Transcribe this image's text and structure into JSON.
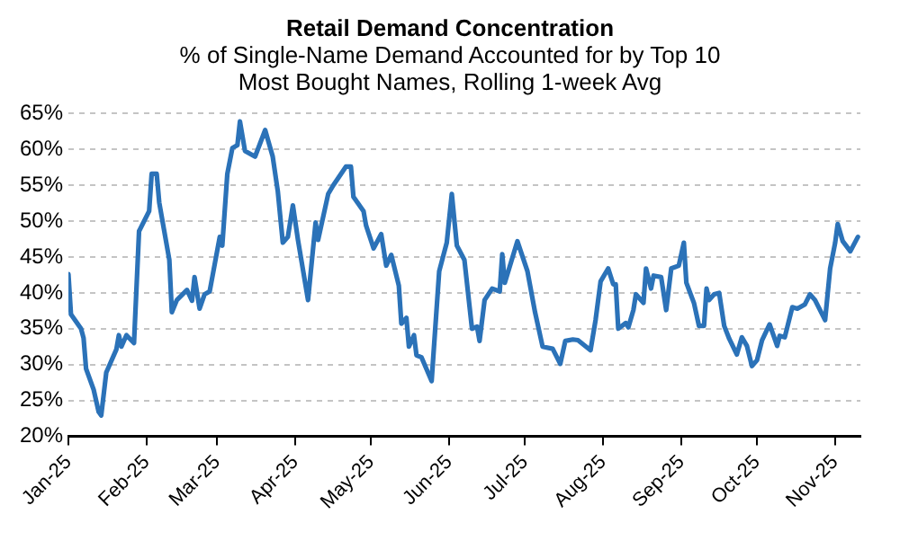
{
  "chart_data": {
    "type": "line",
    "title": "Retail Demand Concentration",
    "subtitle": "% of Single-Name Demand Accounted for by Top 10 Most Bought Names, Rolling 1-week Avg",
    "x": [
      "2025-01-01",
      "2025-01-02",
      "2025-01-06",
      "2025-01-07",
      "2025-01-08",
      "2025-01-11",
      "2025-01-13",
      "2025-01-14",
      "2025-01-16",
      "2025-01-20",
      "2025-01-21",
      "2025-01-22",
      "2025-01-24",
      "2025-01-27",
      "2025-01-29",
      "2025-02-02",
      "2025-02-03",
      "2025-02-05",
      "2025-02-06",
      "2025-02-10",
      "2025-02-11",
      "2025-02-13",
      "2025-02-17",
      "2025-02-19",
      "2025-02-20",
      "2025-02-22",
      "2025-02-24",
      "2025-02-26",
      "2025-03-02",
      "2025-03-03",
      "2025-03-05",
      "2025-03-07",
      "2025-03-09",
      "2025-03-10",
      "2025-03-12",
      "2025-03-16",
      "2025-03-20",
      "2025-03-23",
      "2025-03-25",
      "2025-03-27",
      "2025-03-29",
      "2025-03-31",
      "2025-04-02",
      "2025-04-06",
      "2025-04-09",
      "2025-04-10",
      "2025-04-14",
      "2025-04-16",
      "2025-04-21",
      "2025-04-23",
      "2025-04-24",
      "2025-04-28",
      "2025-04-29",
      "2025-05-02",
      "2025-05-05",
      "2025-05-07",
      "2025-05-09",
      "2025-05-12",
      "2025-05-13",
      "2025-05-15",
      "2025-05-16",
      "2025-05-18",
      "2025-05-19",
      "2025-05-21",
      "2025-05-25",
      "2025-05-28",
      "2025-05-31",
      "2025-06-02",
      "2025-06-04",
      "2025-06-07",
      "2025-06-10",
      "2025-06-12",
      "2025-06-13",
      "2025-06-15",
      "2025-06-18",
      "2025-06-21",
      "2025-06-22",
      "2025-06-23",
      "2025-06-28",
      "2025-07-02",
      "2025-07-05",
      "2025-07-08",
      "2025-07-12",
      "2025-07-15",
      "2025-07-17",
      "2025-07-20",
      "2025-07-22",
      "2025-07-27",
      "2025-07-29",
      "2025-07-31",
      "2025-08-03",
      "2025-08-05",
      "2025-08-06",
      "2025-08-07",
      "2025-08-10",
      "2025-08-11",
      "2025-08-13",
      "2025-08-14",
      "2025-08-17",
      "2025-08-18",
      "2025-08-20",
      "2025-08-21",
      "2025-08-24",
      "2025-08-26",
      "2025-08-28",
      "2025-08-31",
      "2025-09-02",
      "2025-09-03",
      "2025-09-06",
      "2025-09-08",
      "2025-09-10",
      "2025-09-11",
      "2025-09-12",
      "2025-09-14",
      "2025-09-16",
      "2025-09-18",
      "2025-09-20",
      "2025-09-23",
      "2025-09-25",
      "2025-09-27",
      "2025-09-29",
      "2025-10-01",
      "2025-10-03",
      "2025-10-06",
      "2025-10-09",
      "2025-10-10",
      "2025-10-12",
      "2025-10-15",
      "2025-10-17",
      "2025-10-20",
      "2025-10-22",
      "2025-10-24",
      "2025-10-28",
      "2025-10-30",
      "2025-11-01",
      "2025-11-02",
      "2025-11-04",
      "2025-11-07",
      "2025-11-10"
    ],
    "series": [
      {
        "color": "#2b72b8",
        "values": [
          42.6,
          37.0,
          35.0,
          33.7,
          29.4,
          26.5,
          23.4,
          22.9,
          28.9,
          32.1,
          34.1,
          32.5,
          34.1,
          33.0,
          48.6,
          51.4,
          56.6,
          56.6,
          52.6,
          44.6,
          37.3,
          39.0,
          40.4,
          38.9,
          42.2,
          37.8,
          39.8,
          40.2,
          47.8,
          46.6,
          56.6,
          60.2,
          60.6,
          63.9,
          59.8,
          59.0,
          62.7,
          59.0,
          54.2,
          47.0,
          47.8,
          52.2,
          47.4,
          39.0,
          49.8,
          47.4,
          53.8,
          55.0,
          57.6,
          57.6,
          53.4,
          51.4,
          49.4,
          46.2,
          48.2,
          43.8,
          45.3,
          41.0,
          35.7,
          36.5,
          32.5,
          34.1,
          31.3,
          31.0,
          27.7,
          43.0,
          47.0,
          53.8,
          46.6,
          44.6,
          35.0,
          35.3,
          33.3,
          39.0,
          40.6,
          40.2,
          45.4,
          41.4,
          47.2,
          43.0,
          37.3,
          32.5,
          32.2,
          30.1,
          33.3,
          33.5,
          33.4,
          32.0,
          36.2,
          41.6,
          43.4,
          41.2,
          41.2,
          35.0,
          35.8,
          35.2,
          37.6,
          39.8,
          38.6,
          43.4,
          40.6,
          42.4,
          42.2,
          37.6,
          43.4,
          43.8,
          47.0,
          41.4,
          38.6,
          35.4,
          35.4,
          40.6,
          39.0,
          39.8,
          40.0,
          35.4,
          33.6,
          31.4,
          33.8,
          32.6,
          29.8,
          30.6,
          33.4,
          35.6,
          32.6,
          34.0,
          33.8,
          38.0,
          37.8,
          38.4,
          39.8,
          39.0,
          36.2,
          43.4,
          47.0,
          49.6,
          47.2,
          45.8,
          47.8
        ]
      }
    ],
    "xlim": [
      "2025-01-01",
      "2025-11-11"
    ],
    "xticks": [
      {
        "value": "2025-01-01",
        "label": "Jan-25"
      },
      {
        "value": "2025-02-01",
        "label": "Feb-25"
      },
      {
        "value": "2025-03-01",
        "label": "Mar-25"
      },
      {
        "value": "2025-04-01",
        "label": "Apr-25"
      },
      {
        "value": "2025-05-01",
        "label": "May-25"
      },
      {
        "value": "2025-06-01",
        "label": "Jun-25"
      },
      {
        "value": "2025-07-01",
        "label": "Jul-25"
      },
      {
        "value": "2025-08-01",
        "label": "Aug-25"
      },
      {
        "value": "2025-09-01",
        "label": "Sep-25"
      },
      {
        "value": "2025-10-01",
        "label": "Oct-25"
      },
      {
        "value": "2025-11-01",
        "label": "Nov-25"
      }
    ],
    "ylim": [
      20,
      65
    ],
    "yticks": [
      {
        "value": 20,
        "label": "20%"
      },
      {
        "value": 25,
        "label": "25%"
      },
      {
        "value": 30,
        "label": "30%"
      },
      {
        "value": 35,
        "label": "35%"
      },
      {
        "value": 40,
        "label": "40%"
      },
      {
        "value": 45,
        "label": "45%"
      },
      {
        "value": 50,
        "label": "50%"
      },
      {
        "value": 55,
        "label": "55%"
      },
      {
        "value": 60,
        "label": "60%"
      },
      {
        "value": 65,
        "label": "65%"
      }
    ],
    "grid": "y"
  }
}
